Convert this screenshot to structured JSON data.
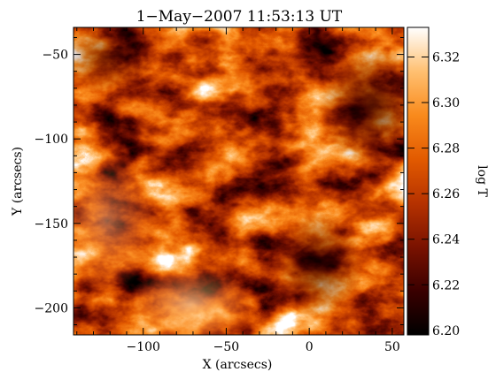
{
  "chart_data": {
    "type": "heatmap",
    "title": "1−May−2007 11:53:13 UT",
    "xlabel": "X (arcsecs)",
    "ylabel": "Y (arcsecs)",
    "xlim": [
      -142,
      57
    ],
    "ylim": [
      -216,
      -34
    ],
    "x_ticks": [
      {
        "value": -100,
        "label": "−100"
      },
      {
        "value": -50,
        "label": "−50"
      },
      {
        "value": 0,
        "label": "0"
      },
      {
        "value": 50,
        "label": "50"
      }
    ],
    "y_ticks": [
      {
        "value": -50,
        "label": "−50"
      },
      {
        "value": -100,
        "label": "−100"
      },
      {
        "value": -150,
        "label": "−150"
      },
      {
        "value": -200,
        "label": "−200"
      }
    ],
    "colorbar": {
      "label": "log T",
      "range": [
        6.198,
        6.333
      ],
      "ticks": [
        {
          "value": 6.2,
          "label": "6.20"
        },
        {
          "value": 6.22,
          "label": "6.22"
        },
        {
          "value": 6.24,
          "label": "6.24"
        },
        {
          "value": 6.26,
          "label": "6.26"
        },
        {
          "value": 6.28,
          "label": "6.28"
        },
        {
          "value": 6.3,
          "label": "6.30"
        },
        {
          "value": 6.32,
          "label": "6.32"
        }
      ],
      "colormap": [
        "#000000",
        "#3a0000",
        "#7a1200",
        "#b63200",
        "#e25a00",
        "#f98a1c",
        "#ffc071",
        "#ffffff"
      ]
    },
    "grid": false
  }
}
